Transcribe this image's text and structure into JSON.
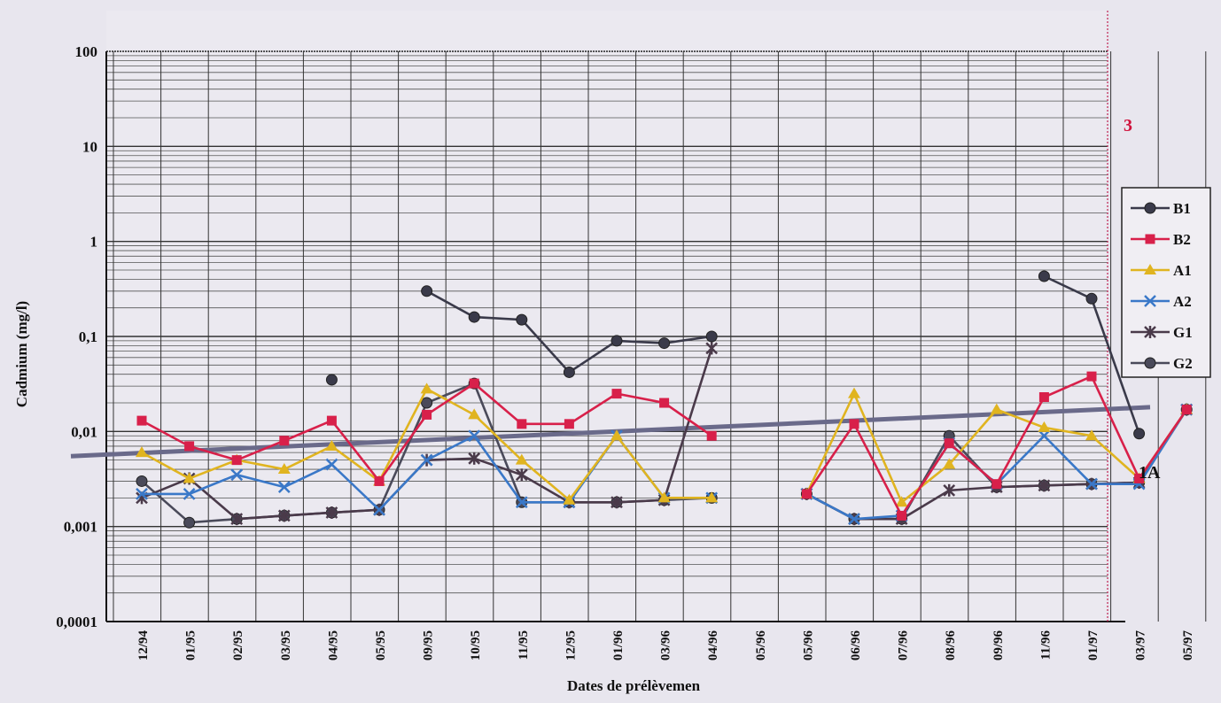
{
  "chart_data": {
    "type": "line",
    "xlabel": "Dates de prélèvemen",
    "ylabel": "Cadmium (mg/l)",
    "y_scale": "log",
    "ylim": [
      0.0001,
      100
    ],
    "y_ticks": [
      "0,0001",
      "0,001",
      "0,01",
      "0,1",
      "1",
      "10",
      "100"
    ],
    "categories": [
      "12/94",
      "01/95",
      "02/95",
      "03/95",
      "04/95",
      "05/95",
      "09/95",
      "10/95",
      "11/95",
      "12/95",
      "01/96",
      "03/96",
      "04/96",
      "05/96",
      "05/96",
      "06/96",
      "07/96",
      "08/96",
      "09/96",
      "11/96",
      "01/97",
      "03/97",
      "05/97"
    ],
    "grid": true,
    "legend_position": "right",
    "series": [
      {
        "name": "B1",
        "color": "#3a3a4a",
        "marker": "diamond",
        "values": [
          null,
          null,
          null,
          null,
          0.035,
          null,
          0.3,
          0.16,
          0.15,
          0.042,
          0.09,
          0.085,
          0.1,
          null,
          null,
          null,
          null,
          null,
          null,
          0.43,
          0.25,
          0.0095,
          null
        ]
      },
      {
        "name": "B2",
        "color": "#d8204a",
        "marker": "square",
        "values": [
          0.013,
          0.007,
          0.005,
          0.008,
          0.013,
          0.003,
          0.015,
          0.032,
          0.012,
          0.012,
          0.025,
          0.02,
          0.009,
          null,
          0.0022,
          0.012,
          0.0013,
          0.0075,
          0.0028,
          0.023,
          0.038,
          0.0032,
          0.017
        ]
      },
      {
        "name": "A1",
        "color": "#e0b420",
        "marker": "triangle",
        "values": [
          0.006,
          0.0032,
          0.005,
          0.004,
          0.007,
          0.003,
          0.028,
          0.015,
          0.005,
          0.0019,
          0.009,
          0.002,
          0.002,
          null,
          0.0022,
          0.025,
          0.0018,
          0.0045,
          0.017,
          0.011,
          0.009,
          0.0032,
          0.017
        ]
      },
      {
        "name": "A2",
        "color": "#3a78c8",
        "marker": "x",
        "values": [
          0.0022,
          0.0022,
          0.0035,
          0.0026,
          0.0045,
          0.0015,
          0.005,
          0.009,
          0.0018,
          0.0018,
          0.009,
          0.002,
          0.002,
          null,
          0.0022,
          0.0012,
          0.0013,
          0.0075,
          0.0028,
          0.009,
          0.0028,
          0.0028,
          0.017
        ]
      },
      {
        "name": "G1",
        "color": "#4a3a4a",
        "marker": "star",
        "values": [
          0.002,
          0.0032,
          0.0012,
          0.0013,
          0.0014,
          0.0015,
          0.005,
          0.0052,
          0.0035,
          0.0018,
          0.0018,
          0.0019,
          0.075,
          null,
          0.0022,
          0.0012,
          0.0012,
          0.0024,
          0.0026,
          0.0027,
          0.0028,
          0.0029,
          0.017
        ]
      },
      {
        "name": "G2",
        "color": "#4a4a5a",
        "marker": "circle",
        "values": [
          0.003,
          0.0011,
          0.0012,
          0.0013,
          0.0014,
          0.0015,
          0.02,
          0.032,
          0.0018,
          0.0018,
          0.0018,
          0.0019,
          0.002,
          null,
          0.0022,
          0.0012,
          0.0012,
          0.009,
          0.0026,
          0.0027,
          0.0028,
          0.0029,
          0.017
        ]
      }
    ],
    "reference_lines": [
      {
        "label": "1A",
        "color": "#6a6a8a",
        "from_value": 0.0055,
        "to_value": 0.018
      },
      {
        "label": "3",
        "color": "#d0103a",
        "from_value": null,
        "to_value": null
      }
    ]
  }
}
